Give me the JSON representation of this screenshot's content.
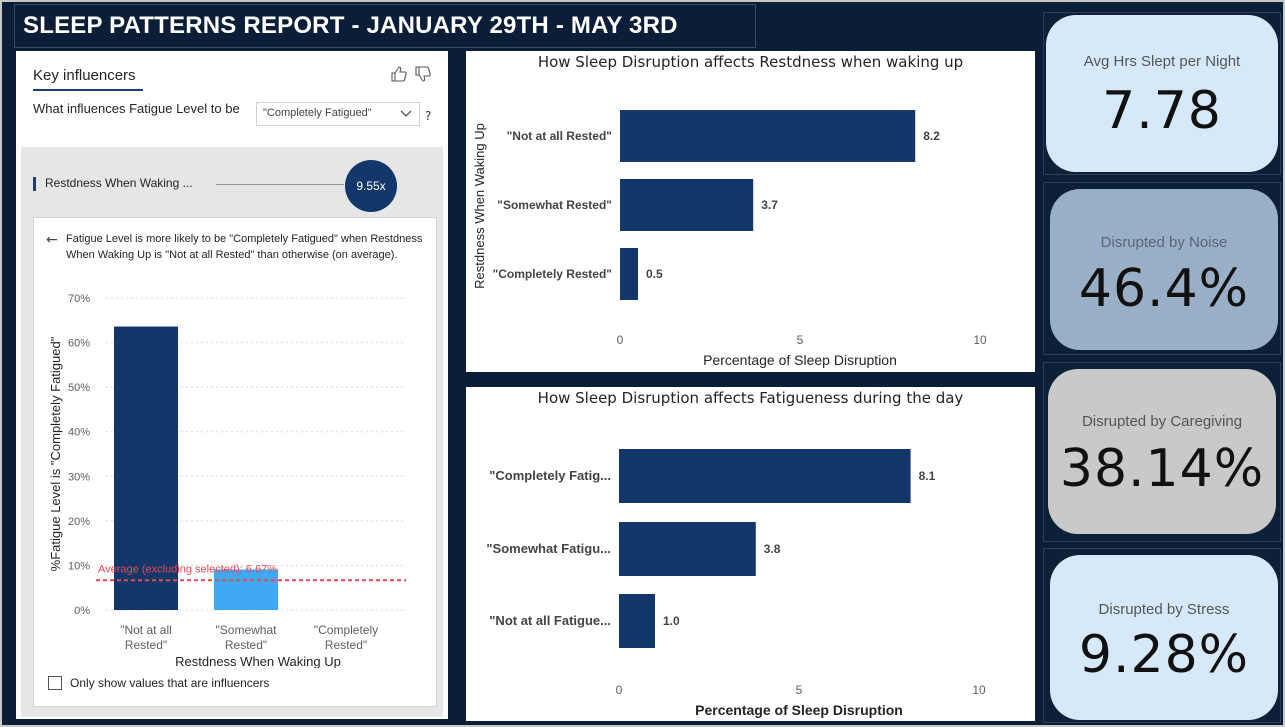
{
  "report": {
    "title": "SLEEP PATTERNS REPORT - JANUARY 29TH - MAY 3RD"
  },
  "key_influencers": {
    "tab_label": "Key influencers",
    "question": "What influences Fatigue Level to be",
    "dropdown_value": "\"Completely Fatigued\"",
    "help": "?",
    "influencer_label": "Restdness When Waking ...",
    "influencer_factor": "9.55x",
    "detail_text": "Fatigue Level is more likely to be \"Completely Fatigued\" when Restdness When Waking Up is \"Not at all Rested\" than otherwise (on average).",
    "checkbox_label": "Only show values that are influencers"
  },
  "chart_data": [
    {
      "type": "bar",
      "ylabel": "%Fatigue Level is \"Completely Fatigued\"",
      "xlabel": "Restdness When Waking Up",
      "categories": [
        [
          "\"Not at all",
          "Rested\""
        ],
        [
          "\"Somewhat",
          "Rested\""
        ],
        [
          "\"Completely",
          "Rested\""
        ]
      ],
      "values": [
        63.6,
        9.1,
        0
      ],
      "ylim": [
        0,
        70
      ],
      "yticks": [
        "0%",
        "10%",
        "20%",
        "30%",
        "40%",
        "50%",
        "60%",
        "70%"
      ],
      "reference_line": {
        "label": "Average (excluding selected): 6.67%",
        "value": 6.67,
        "color": "#e8484f"
      },
      "colors": [
        "#13376b",
        "#3fa9f5",
        "#3fa9f5"
      ],
      "grid": true
    },
    {
      "type": "bar",
      "orientation": "horizontal",
      "title": "How Sleep Disruption affects Restdness when waking up",
      "ylabel": "Restdness When Waking Up",
      "xlabel": "Percentage of Sleep Disruption",
      "categories": [
        "\"Not at all Rested\"",
        "\"Somewhat Rested\"",
        "\"Completely Rested\""
      ],
      "values": [
        8.2,
        3.7,
        0.5
      ],
      "value_labels": [
        "8.2",
        "3.7",
        "0.5"
      ],
      "xlim": [
        0,
        10
      ],
      "xticks": [
        "0",
        "5",
        "10"
      ],
      "color": "#13376b"
    },
    {
      "type": "bar",
      "orientation": "horizontal",
      "title": "How Sleep Disruption affects Fatigueness during the day",
      "xlabel": "Percentage of Sleep Disruption",
      "categories": [
        "\"Completely Fatig...",
        "\"Somewhat Fatigu...",
        "\"Not at all Fatigue..."
      ],
      "values": [
        8.1,
        3.8,
        1.0
      ],
      "value_labels": [
        "8.1",
        "3.8",
        "1.0"
      ],
      "xlim": [
        0,
        10
      ],
      "xticks": [
        "0",
        "5",
        "10"
      ],
      "color": "#13376b"
    }
  ],
  "kpis": [
    {
      "label": "Avg Hrs Slept per Night",
      "value": "7.78",
      "bg": "#d6e9fb",
      "label_color": "#555"
    },
    {
      "label": "Disrupted by Noise",
      "value": "46.4%",
      "bg": "#99afc7",
      "label_color": "#5a6675"
    },
    {
      "label": "Disrupted by Caregiving",
      "value": "38.14%",
      "bg": "#c9c9c9",
      "label_color": "#555"
    },
    {
      "label": "Disrupted by Stress",
      "value": "9.28%",
      "bg": "#d6e9fb",
      "label_color": "#555"
    }
  ]
}
